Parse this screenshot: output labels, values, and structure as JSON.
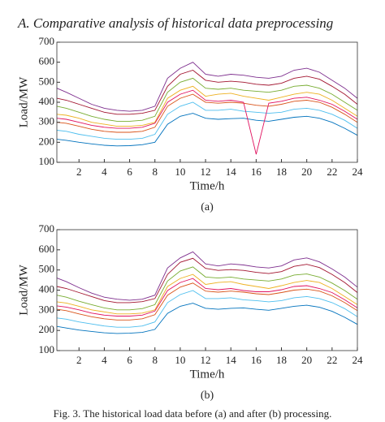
{
  "heading": "A.    Comparative analysis of historical data preprocessing",
  "caption": "Fig. 3. The historical load data before (a) and after (b) processing.",
  "chart_data": [
    {
      "type": "line",
      "xlabel": "Time/h",
      "ylabel": "Load/MW",
      "panel_label": "(a)",
      "xlim": [
        0.25,
        24
      ],
      "ylim": [
        100,
        700
      ],
      "xticks": [
        2,
        4,
        6,
        8,
        10,
        12,
        14,
        16,
        18,
        20,
        22,
        24
      ],
      "yticks": [
        100,
        200,
        300,
        400,
        500,
        600,
        700
      ],
      "x": [
        0.25,
        1,
        2,
        3,
        4,
        5,
        6,
        7,
        8,
        9,
        10,
        11,
        12,
        13,
        14,
        15,
        16,
        17,
        18,
        19,
        20,
        21,
        22,
        23,
        24
      ],
      "series": [
        {
          "color": "#0072bd",
          "values": [
            215,
            210,
            200,
            192,
            185,
            182,
            183,
            188,
            200,
            290,
            330,
            345,
            320,
            315,
            318,
            320,
            310,
            305,
            315,
            325,
            330,
            320,
            300,
            270,
            235
          ]
        },
        {
          "color": "#d95319",
          "values": [
            300,
            295,
            280,
            265,
            255,
            250,
            250,
            255,
            275,
            380,
            420,
            440,
            400,
            395,
            400,
            395,
            385,
            380,
            390,
            405,
            410,
            400,
            375,
            340,
            300
          ]
        },
        {
          "color": "#77ac30",
          "values": [
            380,
            370,
            350,
            330,
            315,
            305,
            305,
            310,
            330,
            450,
            500,
            520,
            470,
            465,
            470,
            460,
            455,
            450,
            460,
            480,
            485,
            470,
            440,
            400,
            360
          ]
        },
        {
          "color": "#7e2f8e",
          "values": [
            470,
            450,
            420,
            390,
            370,
            360,
            355,
            360,
            380,
            520,
            570,
            600,
            540,
            530,
            540,
            535,
            525,
            520,
            530,
            560,
            570,
            550,
            510,
            470,
            420
          ]
        },
        {
          "color": "#edb120",
          "values": [
            340,
            335,
            320,
            300,
            290,
            280,
            280,
            285,
            300,
            420,
            460,
            480,
            430,
            440,
            445,
            430,
            420,
            410,
            425,
            440,
            450,
            440,
            410,
            370,
            330
          ]
        },
        {
          "color": "#4dbeee",
          "values": [
            260,
            255,
            240,
            230,
            220,
            215,
            215,
            220,
            240,
            340,
            380,
            400,
            360,
            360,
            365,
            355,
            350,
            345,
            350,
            365,
            370,
            360,
            340,
            310,
            270
          ]
        },
        {
          "color": "#e0115f",
          "values": [
            320,
            315,
            300,
            285,
            275,
            270,
            270,
            275,
            295,
            400,
            440,
            460,
            410,
            405,
            410,
            400,
            140,
            395,
            405,
            420,
            425,
            410,
            390,
            355,
            315
          ]
        },
        {
          "color": "#a2142f",
          "values": [
            420,
            410,
            390,
            370,
            350,
            340,
            340,
            345,
            360,
            480,
            540,
            560,
            510,
            500,
            505,
            500,
            490,
            485,
            495,
            520,
            530,
            515,
            480,
            440,
            390
          ]
        }
      ]
    },
    {
      "type": "line",
      "xlabel": "Time/h",
      "ylabel": "Load/MW",
      "panel_label": "(b)",
      "xlim": [
        0.25,
        24
      ],
      "ylim": [
        100,
        700
      ],
      "xticks": [
        2,
        4,
        6,
        8,
        10,
        12,
        14,
        16,
        18,
        20,
        22,
        24
      ],
      "yticks": [
        100,
        200,
        300,
        400,
        500,
        600,
        700
      ],
      "x": [
        0.25,
        1,
        2,
        3,
        4,
        5,
        6,
        7,
        8,
        9,
        10,
        11,
        12,
        13,
        14,
        15,
        16,
        17,
        18,
        19,
        20,
        21,
        22,
        23,
        24
      ],
      "series": [
        {
          "color": "#0072bd",
          "values": [
            220,
            212,
            202,
            195,
            188,
            185,
            186,
            190,
            205,
            285,
            320,
            335,
            310,
            305,
            310,
            312,
            305,
            300,
            310,
            320,
            325,
            315,
            295,
            265,
            230
          ]
        },
        {
          "color": "#d95319",
          "values": [
            305,
            298,
            282,
            268,
            258,
            252,
            252,
            258,
            278,
            375,
            415,
            435,
            395,
            390,
            395,
            390,
            382,
            378,
            388,
            400,
            405,
            395,
            372,
            338,
            298
          ]
        },
        {
          "color": "#77ac30",
          "values": [
            375,
            365,
            345,
            328,
            312,
            302,
            302,
            308,
            328,
            445,
            495,
            515,
            465,
            460,
            465,
            455,
            450,
            445,
            455,
            475,
            480,
            465,
            435,
            398,
            355
          ]
        },
        {
          "color": "#7e2f8e",
          "values": [
            460,
            442,
            412,
            385,
            365,
            355,
            350,
            355,
            375,
            510,
            560,
            590,
            530,
            520,
            530,
            525,
            515,
            510,
            520,
            550,
            560,
            540,
            505,
            465,
            415
          ]
        },
        {
          "color": "#edb120",
          "values": [
            342,
            336,
            320,
            302,
            292,
            282,
            282,
            286,
            302,
            418,
            458,
            478,
            428,
            438,
            442,
            428,
            418,
            408,
            422,
            438,
            448,
            438,
            408,
            368,
            328
          ]
        },
        {
          "color": "#4dbeee",
          "values": [
            262,
            256,
            242,
            232,
            222,
            216,
            216,
            222,
            242,
            338,
            378,
            398,
            358,
            358,
            362,
            352,
            348,
            342,
            348,
            362,
            368,
            358,
            338,
            308,
            268
          ]
        },
        {
          "color": "#e0115f",
          "values": [
            322,
            316,
            302,
            286,
            276,
            271,
            271,
            276,
            296,
            398,
            438,
            458,
            408,
            402,
            408,
            398,
            392,
            392,
            402,
            418,
            422,
            408,
            388,
            352,
            312
          ]
        },
        {
          "color": "#a2142f",
          "values": [
            418,
            408,
            388,
            368,
            348,
            338,
            338,
            343,
            358,
            478,
            538,
            558,
            508,
            498,
            502,
            498,
            488,
            482,
            492,
            518,
            528,
            512,
            478,
            438,
            388
          ]
        }
      ]
    }
  ]
}
